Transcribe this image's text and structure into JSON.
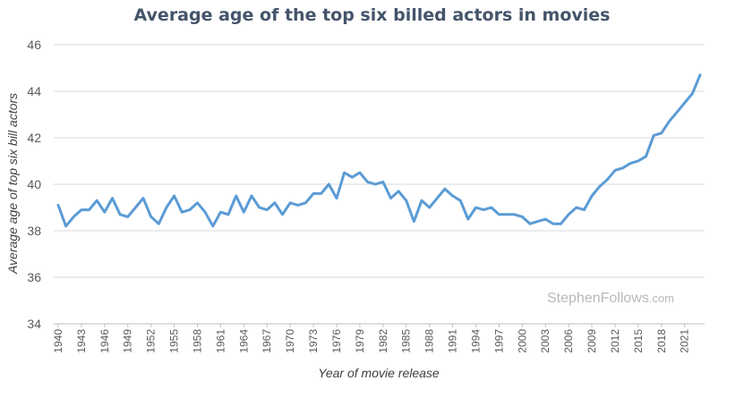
{
  "chart_data": {
    "type": "line",
    "title": "Average age of the top six billed actors in movies",
    "xlabel": "Year of movie release",
    "ylabel": "Average age of top six bill actors",
    "ylim": [
      34,
      46
    ],
    "yticks": [
      34,
      36,
      38,
      40,
      42,
      44,
      46
    ],
    "xticks": [
      1940,
      1943,
      1946,
      1949,
      1952,
      1955,
      1958,
      1961,
      1964,
      1967,
      1970,
      1973,
      1976,
      1979,
      1982,
      1985,
      1988,
      1991,
      1994,
      1997,
      2000,
      2003,
      2006,
      2009,
      2012,
      2015,
      2018,
      2021
    ],
    "grid": true,
    "legend": "none",
    "line_color": "#5b9bd5",
    "series": [
      {
        "x": [
          1940,
          1941,
          1942,
          1943,
          1944,
          1945,
          1946,
          1947,
          1948,
          1949,
          1950,
          1951,
          1952,
          1953,
          1954,
          1955,
          1956,
          1957,
          1958,
          1959,
          1960,
          1961,
          1962,
          1963,
          1964,
          1965,
          1966,
          1967,
          1968,
          1969,
          1970,
          1971,
          1972,
          1973,
          1974,
          1975,
          1976,
          1977,
          1978,
          1979,
          1980,
          1981,
          1982,
          1983,
          1984,
          1985,
          1986,
          1987,
          1988,
          1989,
          1990,
          1991,
          1992,
          1993,
          1994,
          1995,
          1996,
          1997,
          1998,
          1999,
          2000,
          2001,
          2002,
          2003,
          2004,
          2005,
          2006,
          2007,
          2008,
          2009,
          2010,
          2011,
          2012,
          2013,
          2014,
          2015,
          2016,
          2017,
          2018,
          2019,
          2020,
          2021,
          2022,
          2023
        ],
        "values": [
          39.1,
          38.2,
          38.6,
          38.9,
          38.9,
          39.3,
          38.8,
          39.4,
          38.7,
          38.6,
          39.0,
          39.4,
          38.6,
          38.3,
          39.0,
          39.5,
          38.8,
          38.9,
          39.2,
          38.8,
          38.2,
          38.8,
          38.7,
          39.5,
          38.8,
          39.5,
          39.0,
          38.9,
          39.2,
          38.7,
          39.2,
          39.1,
          39.2,
          39.6,
          39.6,
          40.0,
          39.4,
          40.5,
          40.3,
          40.5,
          40.1,
          40.0,
          40.1,
          39.4,
          39.7,
          39.3,
          38.4,
          39.3,
          39.0,
          39.4,
          39.8,
          39.5,
          39.3,
          38.5,
          39.0,
          38.9,
          39.0,
          38.7,
          38.7,
          38.7,
          38.6,
          38.3,
          38.4,
          38.5,
          38.3,
          38.3,
          38.7,
          39.0,
          38.9,
          39.5,
          39.9,
          40.2,
          40.6,
          40.7,
          40.9,
          41.0,
          41.2,
          42.1,
          42.2,
          42.7,
          43.1,
          43.5,
          43.9,
          44.7
        ]
      }
    ],
    "watermark": "StephenFollows",
    "watermark_suffix": ".com"
  }
}
